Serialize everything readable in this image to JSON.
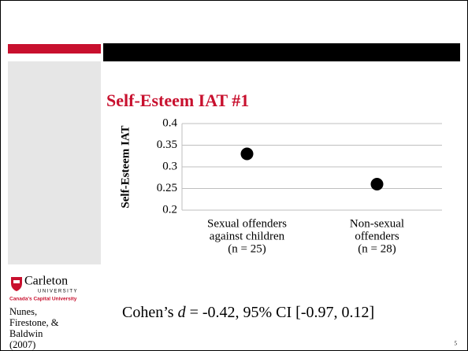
{
  "slide_number": "5",
  "logo": {
    "name": "Carleton",
    "sub": "UNIVERSITY",
    "tagline": "Canada's Capital University"
  },
  "citation": [
    "Nunes,",
    "Firestone, &",
    "Baldwin",
    "(2007)"
  ],
  "footnote": {
    "prefix": "Cohen’s ",
    "italic": "d",
    "suffix": " = -0.42, 95% CI [-0.97, 0.12]"
  },
  "chart_data": {
    "type": "scatter",
    "title": "Self-Esteem IAT #1",
    "y_label": "Self-Esteem IAT",
    "categories": [
      [
        "Sexual offenders",
        "against children",
        "(n = 25)"
      ],
      [
        "Non-sexual",
        "offenders",
        "(n = 28)"
      ]
    ],
    "values": [
      0.33,
      0.26
    ],
    "color": "#000000",
    "ylim": [
      0.2,
      0.4
    ],
    "yticks": [
      0.2,
      0.25,
      0.3,
      0.35,
      0.4
    ],
    "grid": true
  }
}
